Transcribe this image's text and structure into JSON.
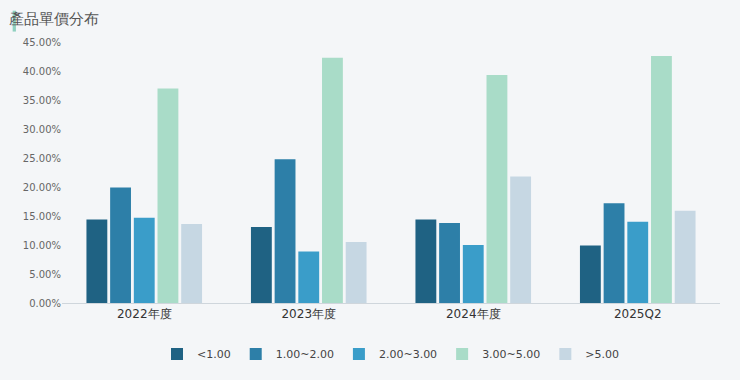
{
  "chart_data": {
    "type": "bar",
    "title": "產品單價分布",
    "categories": [
      "2022年度",
      "2023年度",
      "2024年度",
      "2025Q2"
    ],
    "series": [
      {
        "name": "<1.00",
        "color": "#1f6283",
        "values": [
          14.4,
          13.1,
          14.4,
          9.9
        ]
      },
      {
        "name": "1.00~2.00",
        "color": "#2d7fa8",
        "values": [
          19.9,
          24.8,
          13.8,
          17.2
        ]
      },
      {
        "name": "2.00~3.00",
        "color": "#3a9dc9",
        "values": [
          14.7,
          8.9,
          10.0,
          14.0
        ]
      },
      {
        "name": "3.00~5.00",
        "color": "#a9dcc8",
        "values": [
          37.0,
          42.3,
          39.3,
          42.6
        ]
      },
      {
        "name": ">5.00",
        "color": "#c6d7e3",
        "values": [
          13.6,
          10.5,
          21.8,
          15.9
        ]
      }
    ],
    "ylim": [
      0,
      45
    ],
    "yticks": [
      {
        "value": 0,
        "label": "0.00%"
      },
      {
        "value": 5,
        "label": "5.00%"
      },
      {
        "value": 10,
        "label": "10.00%"
      },
      {
        "value": 15,
        "label": "15.00%"
      },
      {
        "value": 20,
        "label": "20.00%"
      },
      {
        "value": 25,
        "label": "25.00%"
      },
      {
        "value": 30,
        "label": "30.00%"
      },
      {
        "value": 35,
        "label": "35.00%"
      },
      {
        "value": 40,
        "label": "40.00%"
      },
      {
        "value": 45,
        "label": "45.00%"
      }
    ],
    "grid": false,
    "legend": "bottom"
  }
}
